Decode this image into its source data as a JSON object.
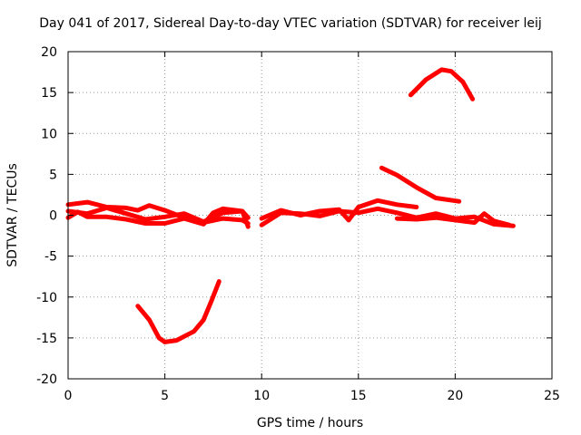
{
  "chart_data": {
    "type": "scatter",
    "title": "Day 041 of 2017, Sidereal Day-to-day VTEC variation (SDTVAR) for receiver leij",
    "xlabel": "GPS time / hours",
    "ylabel": "SDTVAR / TECUs",
    "xlim": [
      0,
      25
    ],
    "ylim": [
      -20,
      20
    ],
    "xticks": [
      0,
      5,
      10,
      15,
      20,
      25
    ],
    "yticks": [
      -20,
      -15,
      -10,
      -5,
      0,
      5,
      10,
      15,
      20
    ],
    "grid": true,
    "legend": "none",
    "color": "#ff0000",
    "series": [
      {
        "name": "band-a",
        "x": [
          0,
          1,
          2,
          3,
          3.6,
          4.2,
          5,
          6,
          7,
          8,
          9,
          9.3
        ],
        "y": [
          1.3,
          1.6,
          1.0,
          0.9,
          0.6,
          1.2,
          0.6,
          -0.3,
          -0.9,
          -0.4,
          -0.6,
          -1.0
        ]
      },
      {
        "name": "band-b",
        "x": [
          0,
          1,
          2,
          3,
          4,
          5,
          6,
          7,
          8,
          9,
          9.3
        ],
        "y": [
          0.5,
          0.2,
          0.9,
          0.2,
          -0.5,
          -0.2,
          0.2,
          -0.8,
          0.3,
          0.5,
          -0.3
        ]
      },
      {
        "name": "band-c",
        "x": [
          0,
          0.5,
          1,
          2,
          3,
          4,
          5,
          6,
          7,
          7.5,
          8,
          9,
          9.3
        ],
        "y": [
          -0.3,
          0.4,
          -0.2,
          -0.2,
          -0.5,
          -1.0,
          -1.0,
          -0.4,
          -1.1,
          0.3,
          0.8,
          0.5,
          -1.4
        ]
      },
      {
        "name": "band-d",
        "x": [
          10,
          11,
          12,
          13,
          14,
          14.5,
          15,
          16,
          17,
          18
        ],
        "y": [
          -0.4,
          0.6,
          0.0,
          0.5,
          0.7,
          -0.6,
          1.0,
          1.8,
          1.3,
          1.0
        ]
      },
      {
        "name": "band-e",
        "x": [
          10,
          11,
          12,
          13,
          14,
          15,
          16,
          17,
          18,
          19,
          20,
          21,
          22,
          23
        ],
        "y": [
          -1.2,
          0.3,
          0.2,
          -0.1,
          0.5,
          0.3,
          0.8,
          0.3,
          -0.3,
          0.2,
          -0.4,
          -0.2,
          -1.1,
          -1.3
        ]
      },
      {
        "name": "band-f",
        "x": [
          17,
          18,
          19,
          20,
          21,
          21.5,
          22,
          22.8
        ],
        "y": [
          -0.4,
          -0.5,
          -0.3,
          -0.6,
          -0.9,
          0.2,
          -0.7,
          -1.2
        ]
      },
      {
        "name": "arc-high",
        "x": [
          17.7,
          18.5,
          19.3,
          19.8,
          20.4,
          20.9
        ],
        "y": [
          14.7,
          16.6,
          17.8,
          17.6,
          16.3,
          14.2
        ]
      },
      {
        "name": "arc-mid",
        "x": [
          16.2,
          17,
          18,
          19,
          20.2
        ],
        "y": [
          5.8,
          4.9,
          3.4,
          2.1,
          1.7
        ]
      },
      {
        "name": "arc-low",
        "x": [
          3.6,
          4.2,
          4.7,
          5.0,
          5.6,
          6.5,
          7.0,
          7.4,
          7.8
        ],
        "y": [
          -11.1,
          -12.8,
          -15.0,
          -15.5,
          -15.3,
          -14.2,
          -12.8,
          -10.5,
          -8.1
        ]
      }
    ]
  }
}
